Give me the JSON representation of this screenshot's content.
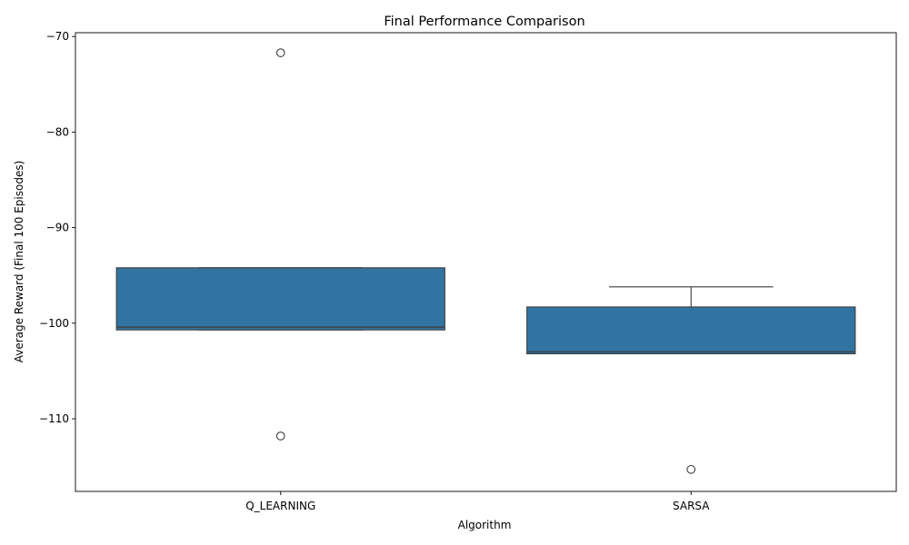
{
  "chart_data": {
    "type": "box",
    "title": "Final Performance Comparison",
    "xlabel": "Algorithm",
    "ylabel": "Average Reward (Final 100 Episodes)",
    "categories": [
      "Q_LEARNING",
      "SARSA"
    ],
    "ylim": [
      -117.6,
      -69.6
    ],
    "yticks": [
      -110,
      -100,
      -90,
      -80,
      -70
    ],
    "ytick_labels": [
      "−110",
      "−100",
      "−90",
      "−80",
      "−70"
    ],
    "grid": false,
    "box_color": "#3274a1",
    "edge_color": "#3d3d3d",
    "boxes": [
      {
        "category": "Q_LEARNING",
        "whisker_low": -100.7,
        "q1": -100.7,
        "median": -100.4,
        "q3": -94.2,
        "whisker_high": -94.2,
        "outliers": [
          -71.7,
          -111.8
        ]
      },
      {
        "category": "SARSA",
        "whisker_low": -103.2,
        "q1": -103.2,
        "median": -103.0,
        "q3": -98.3,
        "whisker_high": -96.2,
        "outliers": [
          -115.3
        ]
      }
    ]
  }
}
